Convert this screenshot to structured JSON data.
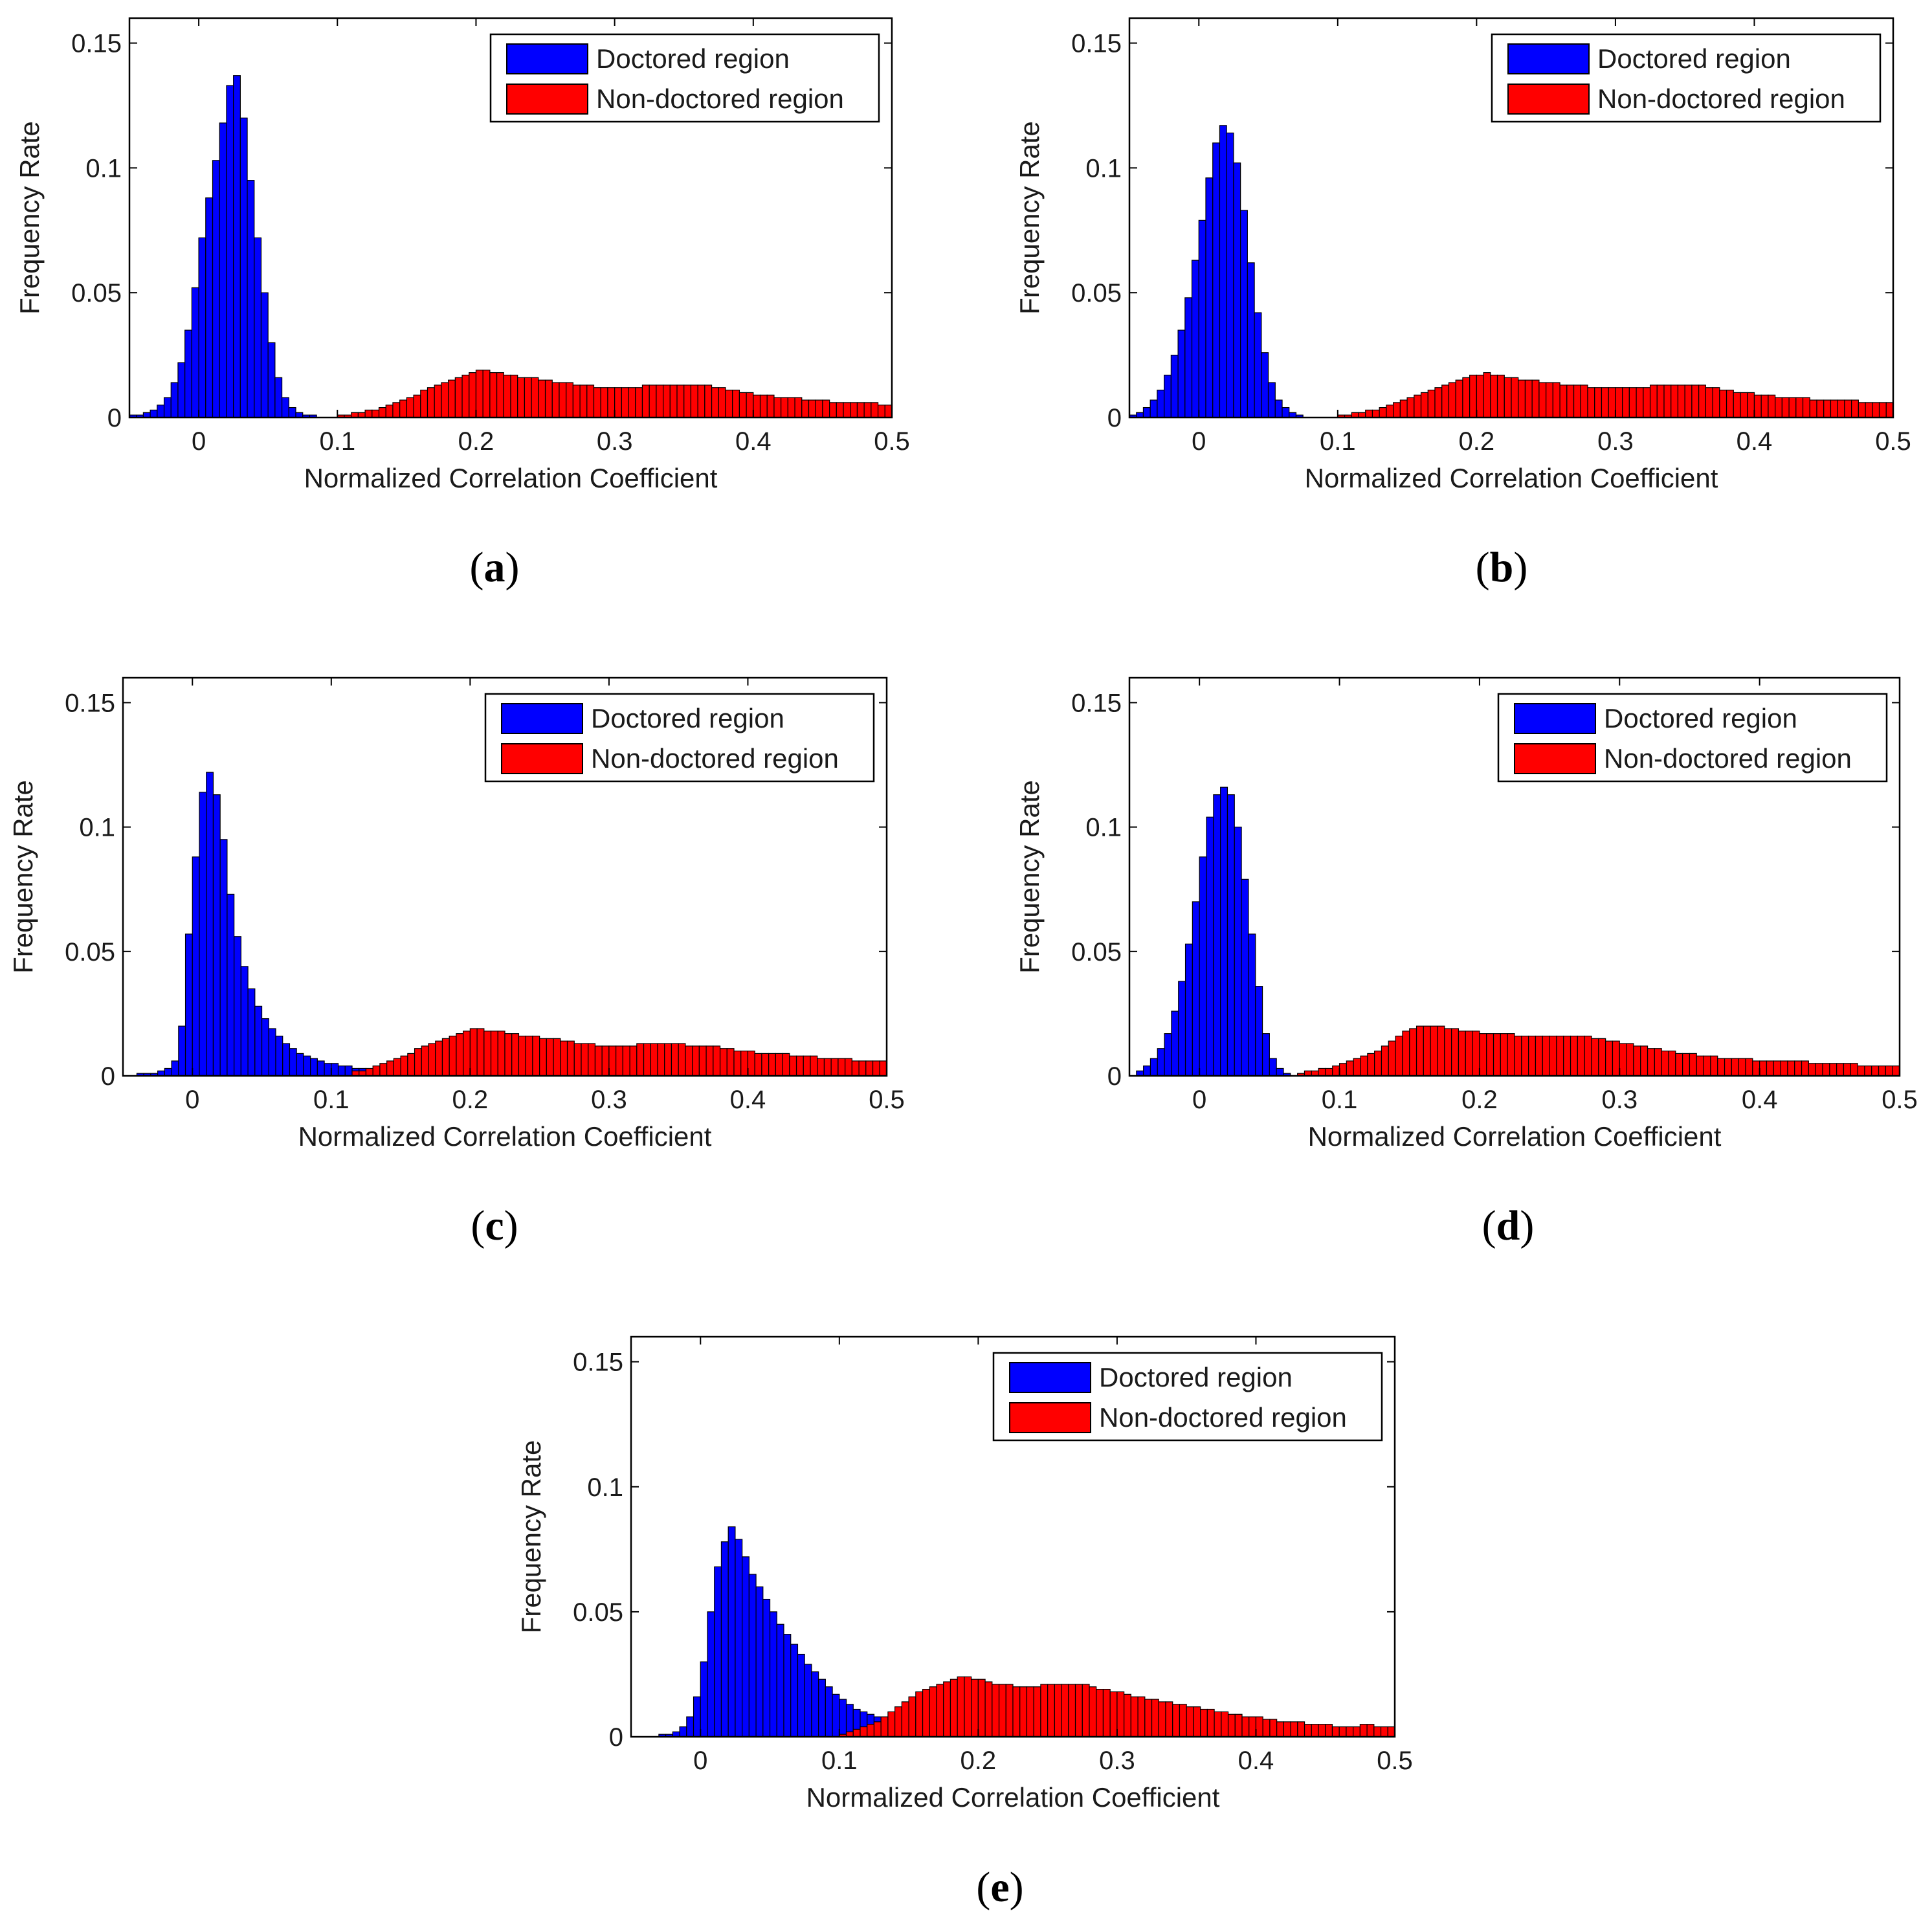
{
  "figure": {
    "colors": {
      "doctored": "#0000ff",
      "non_doctored": "#ff0000",
      "axes": "#000000"
    }
  },
  "chart_data": [
    {
      "id": "a",
      "panel_label": "a",
      "type": "bar",
      "xlabel": "Normalized Correlation Coefficient",
      "ylabel": "Frequency Rate",
      "xlim": [
        -0.05,
        0.5
      ],
      "ylim": [
        0,
        0.16
      ],
      "xticks": [
        0,
        0.1,
        0.2,
        0.3,
        0.4,
        0.5
      ],
      "xtick_labels": [
        "0",
        "0.1",
        "0.2",
        "0.3",
        "0.4",
        "0.5"
      ],
      "yticks": [
        0,
        0.05,
        0.1,
        0.15
      ],
      "ytick_labels": [
        "0",
        "0.05",
        "0.1",
        "0.15"
      ],
      "legend": [
        "Doctored region",
        "Non-doctored region"
      ],
      "legend_position": "top-right",
      "bin_width": 0.005,
      "series": [
        {
          "name": "Doctored region",
          "color": "#0000ff",
          "x_start": -0.05,
          "values": [
            0.001,
            0.001,
            0.002,
            0.003,
            0.005,
            0.008,
            0.014,
            0.022,
            0.035,
            0.052,
            0.072,
            0.088,
            0.103,
            0.118,
            0.133,
            0.137,
            0.12,
            0.095,
            0.072,
            0.05,
            0.03,
            0.016,
            0.008,
            0.004,
            0.002,
            0.001,
            0.001
          ]
        },
        {
          "name": "Non-doctored region",
          "color": "#ff0000",
          "x_start": 0.1,
          "values": [
            0.001,
            0.001,
            0.002,
            0.002,
            0.003,
            0.003,
            0.004,
            0.005,
            0.006,
            0.007,
            0.008,
            0.009,
            0.011,
            0.012,
            0.013,
            0.014,
            0.015,
            0.016,
            0.017,
            0.018,
            0.019,
            0.019,
            0.018,
            0.018,
            0.017,
            0.017,
            0.016,
            0.016,
            0.016,
            0.015,
            0.015,
            0.014,
            0.014,
            0.014,
            0.013,
            0.013,
            0.013,
            0.012,
            0.012,
            0.012,
            0.012,
            0.012,
            0.012,
            0.012,
            0.013,
            0.013,
            0.013,
            0.013,
            0.013,
            0.013,
            0.013,
            0.013,
            0.013,
            0.013,
            0.012,
            0.012,
            0.011,
            0.011,
            0.01,
            0.01,
            0.009,
            0.009,
            0.009,
            0.008,
            0.008,
            0.008,
            0.008,
            0.007,
            0.007,
            0.007,
            0.007,
            0.006,
            0.006,
            0.006,
            0.006,
            0.006,
            0.006,
            0.006,
            0.005,
            0.005
          ]
        }
      ]
    },
    {
      "id": "b",
      "panel_label": "b",
      "type": "bar",
      "xlabel": "Normalized Correlation Coefficient",
      "ylabel": "Frequency Rate",
      "xlim": [
        -0.05,
        0.5
      ],
      "ylim": [
        0,
        0.16
      ],
      "xticks": [
        0,
        0.1,
        0.2,
        0.3,
        0.4,
        0.5
      ],
      "xtick_labels": [
        "0",
        "0.1",
        "0.2",
        "0.3",
        "0.4",
        "0.5"
      ],
      "yticks": [
        0,
        0.05,
        0.1,
        0.15
      ],
      "ytick_labels": [
        "0",
        "0.05",
        "0.1",
        "0.15"
      ],
      "legend": [
        "Doctored region",
        "Non-doctored region"
      ],
      "legend_position": "top-right",
      "bin_width": 0.005,
      "series": [
        {
          "name": "Doctored region",
          "color": "#0000ff",
          "x_start": -0.05,
          "values": [
            0.001,
            0.002,
            0.004,
            0.007,
            0.011,
            0.017,
            0.025,
            0.035,
            0.048,
            0.063,
            0.079,
            0.096,
            0.11,
            0.117,
            0.114,
            0.102,
            0.083,
            0.062,
            0.042,
            0.026,
            0.014,
            0.007,
            0.004,
            0.002,
            0.001
          ]
        },
        {
          "name": "Non-doctored region",
          "color": "#ff0000",
          "x_start": 0.1,
          "values": [
            0.001,
            0.001,
            0.002,
            0.002,
            0.003,
            0.003,
            0.004,
            0.005,
            0.006,
            0.007,
            0.008,
            0.009,
            0.01,
            0.011,
            0.012,
            0.013,
            0.014,
            0.015,
            0.016,
            0.017,
            0.017,
            0.018,
            0.017,
            0.017,
            0.016,
            0.016,
            0.015,
            0.015,
            0.015,
            0.014,
            0.014,
            0.014,
            0.013,
            0.013,
            0.013,
            0.013,
            0.012,
            0.012,
            0.012,
            0.012,
            0.012,
            0.012,
            0.012,
            0.012,
            0.012,
            0.013,
            0.013,
            0.013,
            0.013,
            0.013,
            0.013,
            0.013,
            0.013,
            0.012,
            0.012,
            0.011,
            0.011,
            0.01,
            0.01,
            0.01,
            0.009,
            0.009,
            0.009,
            0.008,
            0.008,
            0.008,
            0.008,
            0.008,
            0.007,
            0.007,
            0.007,
            0.007,
            0.007,
            0.007,
            0.007,
            0.006,
            0.006,
            0.006,
            0.006,
            0.006
          ]
        }
      ]
    },
    {
      "id": "c",
      "panel_label": "c",
      "type": "bar",
      "xlabel": "Normalized Correlation Coefficient",
      "ylabel": "Frequency Rate",
      "xlim": [
        -0.05,
        0.5
      ],
      "ylim": [
        0,
        0.16
      ],
      "xticks": [
        0,
        0.1,
        0.2,
        0.3,
        0.4,
        0.5
      ],
      "xtick_labels": [
        "0",
        "0.1",
        "0.2",
        "0.3",
        "0.4",
        "0.5"
      ],
      "yticks": [
        0,
        0.05,
        0.1,
        0.15
      ],
      "ytick_labels": [
        "0",
        "0.05",
        "0.1",
        "0.15"
      ],
      "legend": [
        "Doctored region",
        "Non-doctored region"
      ],
      "legend_position": "top-right",
      "bin_width": 0.005,
      "series": [
        {
          "name": "Doctored region",
          "color": "#0000ff",
          "x_start": -0.04,
          "values": [
            0.001,
            0.001,
            0.001,
            0.002,
            0.003,
            0.006,
            0.02,
            0.057,
            0.088,
            0.114,
            0.122,
            0.113,
            0.095,
            0.073,
            0.056,
            0.044,
            0.035,
            0.028,
            0.023,
            0.019,
            0.016,
            0.013,
            0.011,
            0.009,
            0.008,
            0.007,
            0.006,
            0.005,
            0.005,
            0.004,
            0.004,
            0.003,
            0.003
          ]
        },
        {
          "name": "Non-doctored region",
          "color": "#ff0000",
          "x_start": 0.115,
          "values": [
            0.002,
            0.002,
            0.003,
            0.004,
            0.005,
            0.006,
            0.007,
            0.008,
            0.009,
            0.011,
            0.012,
            0.013,
            0.014,
            0.015,
            0.016,
            0.017,
            0.018,
            0.019,
            0.019,
            0.018,
            0.018,
            0.018,
            0.017,
            0.017,
            0.016,
            0.016,
            0.016,
            0.015,
            0.015,
            0.015,
            0.014,
            0.014,
            0.013,
            0.013,
            0.013,
            0.012,
            0.012,
            0.012,
            0.012,
            0.012,
            0.012,
            0.013,
            0.013,
            0.013,
            0.013,
            0.013,
            0.013,
            0.013,
            0.012,
            0.012,
            0.012,
            0.012,
            0.012,
            0.011,
            0.011,
            0.01,
            0.01,
            0.01,
            0.009,
            0.009,
            0.009,
            0.009,
            0.009,
            0.008,
            0.008,
            0.008,
            0.008,
            0.007,
            0.007,
            0.007,
            0.007,
            0.007,
            0.006,
            0.006,
            0.006,
            0.006,
            0.006
          ]
        }
      ]
    },
    {
      "id": "d",
      "panel_label": "d",
      "type": "bar",
      "xlabel": "Normalized Correlation Coefficient",
      "ylabel": "Frequency Rate",
      "xlim": [
        -0.05,
        0.5
      ],
      "ylim": [
        0,
        0.16
      ],
      "xticks": [
        0,
        0.1,
        0.2,
        0.3,
        0.4,
        0.5
      ],
      "xtick_labels": [
        "0",
        "0.1",
        "0.2",
        "0.3",
        "0.4",
        "0.5"
      ],
      "yticks": [
        0,
        0.05,
        0.1,
        0.15
      ],
      "ytick_labels": [
        "0",
        "0.05",
        "0.1",
        "0.15"
      ],
      "legend": [
        "Doctored region",
        "Non-doctored region"
      ],
      "legend_position": "top-right",
      "bin_width": 0.005,
      "series": [
        {
          "name": "Doctored region",
          "color": "#0000ff",
          "x_start": -0.045,
          "values": [
            0.002,
            0.004,
            0.007,
            0.011,
            0.017,
            0.026,
            0.038,
            0.053,
            0.07,
            0.088,
            0.104,
            0.113,
            0.116,
            0.113,
            0.1,
            0.079,
            0.057,
            0.036,
            0.017,
            0.007,
            0.003,
            0.001
          ]
        },
        {
          "name": "Non-doctored region",
          "color": "#ff0000",
          "x_start": 0.07,
          "values": [
            0.001,
            0.002,
            0.002,
            0.003,
            0.003,
            0.004,
            0.005,
            0.006,
            0.007,
            0.008,
            0.009,
            0.01,
            0.012,
            0.014,
            0.016,
            0.018,
            0.019,
            0.02,
            0.02,
            0.02,
            0.02,
            0.019,
            0.019,
            0.018,
            0.018,
            0.018,
            0.017,
            0.017,
            0.017,
            0.017,
            0.017,
            0.016,
            0.016,
            0.016,
            0.016,
            0.016,
            0.016,
            0.016,
            0.016,
            0.016,
            0.016,
            0.016,
            0.015,
            0.015,
            0.014,
            0.014,
            0.013,
            0.013,
            0.012,
            0.012,
            0.011,
            0.011,
            0.01,
            0.01,
            0.009,
            0.009,
            0.009,
            0.008,
            0.008,
            0.008,
            0.007,
            0.007,
            0.007,
            0.007,
            0.007,
            0.006,
            0.006,
            0.006,
            0.006,
            0.006,
            0.006,
            0.006,
            0.006,
            0.005,
            0.005,
            0.005,
            0.005,
            0.005,
            0.005,
            0.005,
            0.004,
            0.004,
            0.004,
            0.004,
            0.004,
            0.004
          ]
        }
      ]
    },
    {
      "id": "e",
      "panel_label": "e",
      "type": "bar",
      "xlabel": "Normalized Correlation Coefficient",
      "ylabel": "Frequency Rate",
      "xlim": [
        -0.05,
        0.5
      ],
      "ylim": [
        0,
        0.16
      ],
      "xticks": [
        0,
        0.1,
        0.2,
        0.3,
        0.4,
        0.5
      ],
      "xtick_labels": [
        "0",
        "0.1",
        "0.2",
        "0.3",
        "0.4",
        "0.5"
      ],
      "yticks": [
        0,
        0.05,
        0.1,
        0.15
      ],
      "ytick_labels": [
        "0",
        "0.05",
        "0.1",
        "0.15"
      ],
      "legend": [
        "Doctored region",
        "Non-doctored region"
      ],
      "legend_position": "top-right",
      "bin_width": 0.005,
      "series": [
        {
          "name": "Doctored region",
          "color": "#0000ff",
          "x_start": -0.03,
          "values": [
            0.001,
            0.001,
            0.002,
            0.004,
            0.008,
            0.016,
            0.03,
            0.05,
            0.068,
            0.078,
            0.084,
            0.079,
            0.072,
            0.065,
            0.06,
            0.055,
            0.05,
            0.045,
            0.041,
            0.037,
            0.033,
            0.029,
            0.026,
            0.023,
            0.02,
            0.017,
            0.015,
            0.013,
            0.011,
            0.01,
            0.009,
            0.008,
            0.007,
            0.006,
            0.005,
            0.004,
            0.003,
            0.002,
            0.001
          ]
        },
        {
          "name": "Non-doctored region",
          "color": "#ff0000",
          "x_start": 0.1,
          "values": [
            0.001,
            0.002,
            0.003,
            0.004,
            0.005,
            0.006,
            0.008,
            0.01,
            0.012,
            0.014,
            0.016,
            0.018,
            0.019,
            0.02,
            0.021,
            0.022,
            0.023,
            0.024,
            0.024,
            0.023,
            0.023,
            0.022,
            0.021,
            0.021,
            0.021,
            0.02,
            0.02,
            0.02,
            0.02,
            0.021,
            0.021,
            0.021,
            0.021,
            0.021,
            0.021,
            0.021,
            0.02,
            0.019,
            0.019,
            0.018,
            0.018,
            0.017,
            0.016,
            0.016,
            0.015,
            0.015,
            0.014,
            0.014,
            0.013,
            0.013,
            0.012,
            0.012,
            0.011,
            0.011,
            0.01,
            0.01,
            0.009,
            0.009,
            0.008,
            0.008,
            0.008,
            0.007,
            0.007,
            0.006,
            0.006,
            0.006,
            0.006,
            0.005,
            0.005,
            0.005,
            0.005,
            0.004,
            0.004,
            0.004,
            0.004,
            0.005,
            0.005,
            0.004,
            0.004,
            0.004
          ]
        }
      ]
    }
  ]
}
